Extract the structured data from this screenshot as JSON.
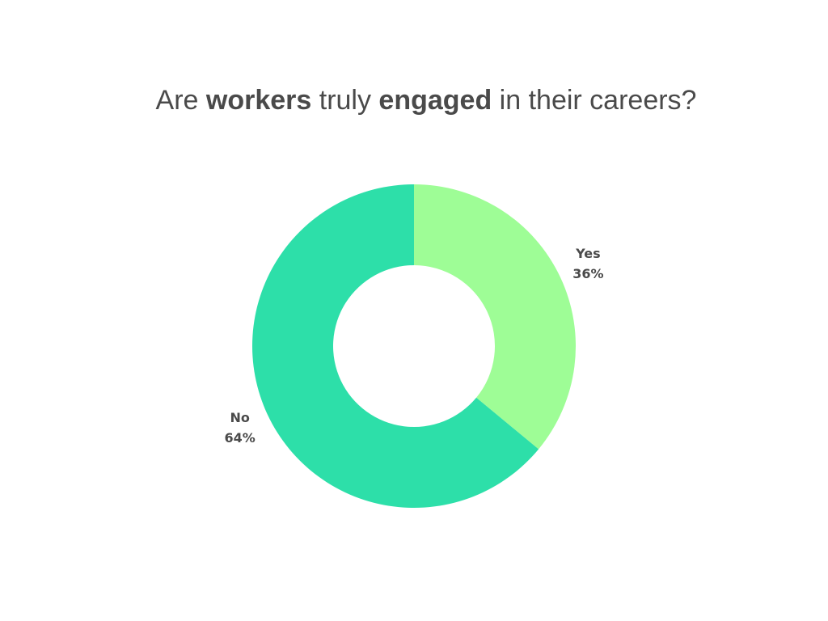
{
  "chart_data": {
    "type": "donut",
    "title": [
      "Are ",
      "workers",
      " truly ",
      "engaged",
      " in their careers?"
    ],
    "title_bold": [
      false,
      true,
      false,
      true,
      false
    ],
    "categories": [
      "Yes",
      "No"
    ],
    "values": [
      36,
      64
    ],
    "value_labels": [
      "36%",
      "64%"
    ],
    "colors": [
      "#9efd96",
      "#2ddfa9"
    ]
  }
}
